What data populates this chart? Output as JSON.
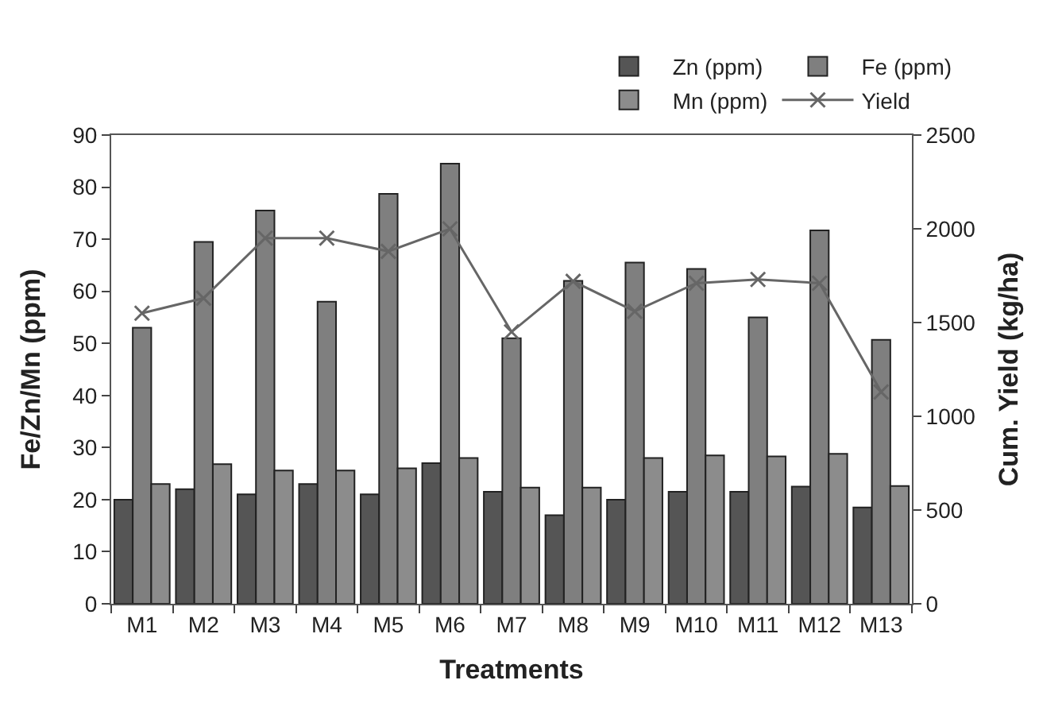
{
  "chart_data": {
    "type": "bar",
    "xlabel": "Treatments",
    "ylabel": "Fe/Zn/Mn (ppm)",
    "y2label": "Cum. Yield (kg/ha)",
    "categories": [
      "M1",
      "M2",
      "M3",
      "M4",
      "M5",
      "M6",
      "M7",
      "M8",
      "M9",
      "M10",
      "M11",
      "M12",
      "M13"
    ],
    "series": [
      {
        "name": "Zn (ppm)",
        "color": "#555555",
        "values": [
          20,
          22,
          21,
          23,
          21,
          27,
          21.5,
          17,
          20,
          21.5,
          21.5,
          22.5,
          18.5
        ]
      },
      {
        "name": "Fe (ppm)",
        "color": "#7f7f7f",
        "values": [
          53,
          69.5,
          75.5,
          58,
          78.7,
          84.5,
          51,
          62,
          65.5,
          64.3,
          55,
          71.7,
          50.7
        ]
      },
      {
        "name": "Mn (ppm)",
        "color": "#8c8c8c",
        "values": [
          23,
          26.8,
          25.6,
          25.6,
          26,
          28,
          22.3,
          22.3,
          28,
          28.5,
          28.3,
          28.8,
          22.6
        ]
      },
      {
        "name": "Yield",
        "type": "line",
        "axis": "y2",
        "color": "#666666",
        "marker": "cross",
        "values": [
          1550,
          1630,
          1950,
          1950,
          1880,
          2000,
          1450,
          1720,
          1560,
          1710,
          1730,
          1710,
          1130
        ]
      }
    ],
    "ylim": [
      0,
      90
    ],
    "yticks": [
      0,
      10,
      20,
      30,
      40,
      50,
      60,
      70,
      80,
      90
    ],
    "y2lim": [
      0,
      2500
    ],
    "y2ticks": [
      0,
      500,
      1000,
      1500,
      2000,
      2500
    ],
    "legend": "top right"
  }
}
